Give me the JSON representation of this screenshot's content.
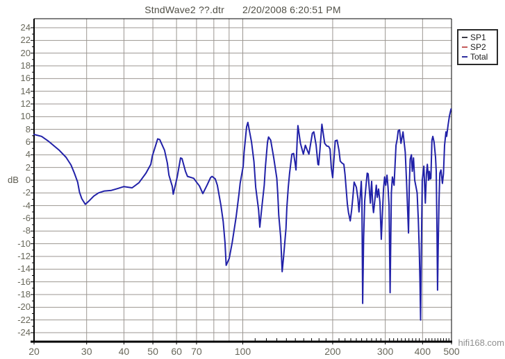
{
  "header": {
    "title_file": "StndWave2 ??.dtr",
    "title_datetime": "2/20/2008 6:20:51 PM"
  },
  "watermark": "hifi168.com",
  "legend": {
    "items": [
      {
        "label": "SP1",
        "color": "#3c3c46"
      },
      {
        "label": "SP2",
        "color": "#c45a5a"
      },
      {
        "label": "Total",
        "color": "#2e2e9e"
      }
    ]
  },
  "axes": {
    "y": {
      "label": "dB",
      "min": -24,
      "max": 24,
      "step": 2,
      "tick_labels": [
        24,
        22,
        20,
        18,
        16,
        14,
        12,
        10,
        8,
        6,
        4,
        2,
        0,
        -2,
        -4,
        -6,
        -8,
        -10,
        -12,
        -14,
        -16,
        -18,
        -20,
        -22,
        -24
      ]
    },
    "x": {
      "scale": "log",
      "min": 20,
      "max": 500,
      "labeled_ticks": [
        20,
        30,
        40,
        50,
        60,
        70,
        100,
        200,
        300,
        400,
        500
      ],
      "gridline_ticks": [
        30,
        40,
        50,
        60,
        70,
        80,
        90,
        100,
        200,
        300,
        400,
        500
      ],
      "minor_ticks": [
        110,
        120,
        130,
        140,
        150,
        160,
        170,
        180,
        190,
        210,
        220,
        230,
        240,
        250,
        260,
        270,
        280,
        290,
        310,
        320,
        330,
        340,
        350,
        360,
        370,
        380,
        390,
        410,
        420,
        430,
        440,
        450,
        460,
        470,
        480,
        490
      ]
    }
  },
  "colors": {
    "background": "#ffffff",
    "grid": "#9b9691",
    "frame": "#000000",
    "curve": "#2121a8",
    "tick_text": "#68675a",
    "title_text": "#504f46",
    "watermark_text": "#8f8f8f"
  },
  "chart_data": {
    "type": "line",
    "title": "StndWave2 ??.dtr  2/20/2008 6:20:51 PM",
    "xlabel": "",
    "ylabel": "dB",
    "x_scale": "log",
    "xlim": [
      20,
      500
    ],
    "ylim": [
      -24,
      24
    ],
    "grid": true,
    "legend_position": "top-right-outside",
    "legend_entries": [
      "SP1",
      "SP2",
      "Total"
    ],
    "series": [
      {
        "name": "Total",
        "color": "#2121a8",
        "points": [
          [
            20,
            7.2
          ],
          [
            21.2,
            6.9
          ],
          [
            22.4,
            6.1
          ],
          [
            24.3,
            4.7
          ],
          [
            25.6,
            3.6
          ],
          [
            26.6,
            2.4
          ],
          [
            27.3,
            1.1
          ],
          [
            28,
            -0.3
          ],
          [
            28.4,
            -1.9
          ],
          [
            28.9,
            -2.9
          ],
          [
            29.7,
            -3.8
          ],
          [
            30.5,
            -3.3
          ],
          [
            31.7,
            -2.5
          ],
          [
            32.9,
            -2
          ],
          [
            34.4,
            -1.7
          ],
          [
            36.3,
            -1.6
          ],
          [
            38.2,
            -1.3
          ],
          [
            40,
            -1
          ],
          [
            42.6,
            -1.2
          ],
          [
            44.9,
            -0.4
          ],
          [
            47.4,
            1.1
          ],
          [
            49.2,
            2.5
          ],
          [
            49.8,
            3.8
          ],
          [
            51.9,
            6.5
          ],
          [
            52.7,
            6.4
          ],
          [
            54.7,
            4.7
          ],
          [
            55.9,
            2.7
          ],
          [
            56.6,
            0.8
          ],
          [
            58.1,
            -1
          ],
          [
            58.5,
            -2.2
          ],
          [
            60.3,
            0.5
          ],
          [
            61.9,
            3.5
          ],
          [
            62.6,
            3.4
          ],
          [
            64.3,
            1.4
          ],
          [
            65.3,
            0.6
          ],
          [
            67.4,
            0.4
          ],
          [
            68.5,
            0.3
          ],
          [
            70,
            -0.3
          ],
          [
            71.6,
            -0.9
          ],
          [
            73.5,
            -2.1
          ],
          [
            75.9,
            -0.8
          ],
          [
            78,
            0.4
          ],
          [
            78.9,
            0.6
          ],
          [
            80.9,
            0.2
          ],
          [
            82.2,
            -0.8
          ],
          [
            84.5,
            -4
          ],
          [
            86,
            -6.5
          ],
          [
            87.2,
            -9.8
          ],
          [
            88,
            -13.4
          ],
          [
            90.1,
            -12.3
          ],
          [
            92.2,
            -9.8
          ],
          [
            95,
            -5.8
          ],
          [
            97.1,
            -2.2
          ],
          [
            98,
            -0.5
          ],
          [
            100.3,
            2.2
          ],
          [
            101,
            4.4
          ],
          [
            103,
            8.4
          ],
          [
            104,
            9.1
          ],
          [
            107,
            6
          ],
          [
            109,
            2.9
          ],
          [
            110.5,
            -1.1
          ],
          [
            113,
            -4.7
          ],
          [
            114,
            -7.4
          ],
          [
            116,
            -4
          ],
          [
            118,
            -0.8
          ],
          [
            119,
            2
          ],
          [
            121,
            6
          ],
          [
            122,
            6.8
          ],
          [
            124,
            6.3
          ],
          [
            126,
            4.4
          ],
          [
            127,
            3.5
          ],
          [
            130,
            0.3
          ],
          [
            131,
            -2.2
          ],
          [
            132,
            -5.5
          ],
          [
            134,
            -9
          ],
          [
            135.5,
            -14.4
          ],
          [
            137,
            -12
          ],
          [
            139.5,
            -7.6
          ],
          [
            140.4,
            -4.4
          ],
          [
            142,
            -1.1
          ],
          [
            143.5,
            1.1
          ],
          [
            146,
            4.1
          ],
          [
            148,
            4.2
          ],
          [
            150,
            2.4
          ],
          [
            150.7,
            1.6
          ],
          [
            152,
            6
          ],
          [
            153,
            8.6
          ],
          [
            156,
            5.8
          ],
          [
            159.5,
            4.1
          ],
          [
            162,
            5.5
          ],
          [
            164.5,
            4.7
          ],
          [
            166.5,
            4.1
          ],
          [
            171,
            7.4
          ],
          [
            173,
            7.6
          ],
          [
            176,
            5.5
          ],
          [
            178.5,
            2.5
          ],
          [
            179.5,
            2.4
          ],
          [
            181,
            4.4
          ],
          [
            184,
            8.8
          ],
          [
            188,
            5.8
          ],
          [
            191,
            5.4
          ],
          [
            194,
            5.3
          ],
          [
            196,
            4.9
          ],
          [
            198,
            1.9
          ],
          [
            200,
            0.4
          ],
          [
            204,
            6.2
          ],
          [
            207,
            6.3
          ],
          [
            210,
            4.7
          ],
          [
            212,
            3
          ],
          [
            215,
            2.7
          ],
          [
            218,
            2.5
          ],
          [
            220,
            0.9
          ],
          [
            224,
            -3.8
          ],
          [
            226,
            -5.1
          ],
          [
            229,
            -6.4
          ],
          [
            231.5,
            -4.7
          ],
          [
            233.5,
            -2.9
          ],
          [
            236,
            -0.3
          ],
          [
            240,
            -1.1
          ],
          [
            243,
            -2.9
          ],
          [
            245,
            -5
          ],
          [
            248,
            -1.8
          ],
          [
            249.3,
            -0.2
          ],
          [
            250.6,
            -3
          ],
          [
            252,
            -19.4
          ],
          [
            254,
            -9
          ],
          [
            256,
            -3.3
          ],
          [
            258.5,
            -1
          ],
          [
            261,
            1.1
          ],
          [
            263,
            1
          ],
          [
            266,
            -2.2
          ],
          [
            267.5,
            -3.6
          ],
          [
            270,
            -0.2
          ],
          [
            272.5,
            -4
          ],
          [
            274,
            -5.1
          ],
          [
            277,
            -3.1
          ],
          [
            280,
            -0.8
          ],
          [
            282,
            -2.7
          ],
          [
            285,
            -1.4
          ],
          [
            288,
            -3.5
          ],
          [
            291,
            -9.3
          ],
          [
            296,
            -1.4
          ],
          [
            298.5,
            0.5
          ],
          [
            301,
            -0.8
          ],
          [
            304,
            0.8
          ],
          [
            306.5,
            -1.1
          ],
          [
            309,
            -4
          ],
          [
            311.5,
            -17.7
          ],
          [
            314.5,
            -2
          ],
          [
            317,
            0.5
          ],
          [
            321,
            -0.8
          ],
          [
            326,
            5.5
          ],
          [
            329,
            6.5
          ],
          [
            331.5,
            7.8
          ],
          [
            335,
            7.9
          ],
          [
            338.5,
            5.8
          ],
          [
            344,
            7.6
          ],
          [
            350,
            4.4
          ],
          [
            353.5,
            -0.3
          ],
          [
            356,
            -4
          ],
          [
            359,
            -8.3
          ],
          [
            361,
            -1
          ],
          [
            363.5,
            3.3
          ],
          [
            367,
            4
          ],
          [
            369.5,
            1.4
          ],
          [
            373,
            3.5
          ],
          [
            376.5,
            0
          ],
          [
            380,
            -1
          ],
          [
            383.5,
            -2
          ],
          [
            387,
            -6.2
          ],
          [
            390,
            -11
          ],
          [
            392,
            -16
          ],
          [
            394,
            -22
          ],
          [
            396.5,
            -10
          ],
          [
            399,
            0
          ],
          [
            404,
            2.2
          ],
          [
            408.5,
            -3.6
          ],
          [
            412,
            1
          ],
          [
            415,
            2.5
          ],
          [
            419,
            0
          ],
          [
            421.5,
            1.4
          ],
          [
            424,
            0.2
          ],
          [
            426.5,
            0.3
          ],
          [
            430,
            6.3
          ],
          [
            433,
            6.9
          ],
          [
            437,
            6
          ],
          [
            442,
            3.6
          ],
          [
            444.5,
            1.4
          ],
          [
            447,
            -8
          ],
          [
            449,
            -17.3
          ],
          [
            451.5,
            -10
          ],
          [
            454,
            -3.3
          ],
          [
            457,
            1.1
          ],
          [
            461,
            1.6
          ],
          [
            466,
            -0.5
          ],
          [
            470,
            1
          ],
          [
            474,
            5.5
          ],
          [
            479,
            7.6
          ],
          [
            481.5,
            6.9
          ],
          [
            487,
            8.7
          ],
          [
            492,
            10.1
          ],
          [
            498,
            11.2
          ]
        ]
      }
    ]
  }
}
